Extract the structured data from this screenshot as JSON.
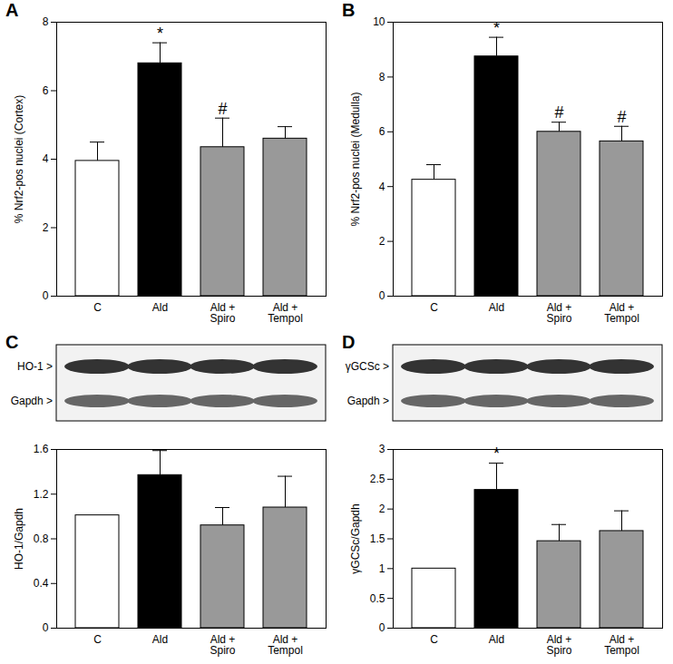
{
  "chart_data": [
    {
      "type": "bar",
      "title": "A",
      "y_label": "% Nrf2-pos nuclei (Cortex)",
      "categories": [
        "C",
        "Ald",
        "Ald +\nSpiro",
        "Ald +\nTempol"
      ],
      "values": [
        3.95,
        6.8,
        4.35,
        4.6
      ],
      "errors": [
        0.55,
        0.6,
        0.85,
        0.35
      ],
      "colors": [
        "#ffffff",
        "#000000",
        "#999999",
        "#999999"
      ],
      "ylim": [
        0,
        8
      ],
      "yticks": [
        0,
        2,
        4,
        6,
        8
      ],
      "annotations": [
        {
          "category": "Ald",
          "text": "*"
        },
        {
          "category": "Ald +\nSpiro",
          "text": "#"
        }
      ]
    },
    {
      "type": "bar",
      "title": "B",
      "y_label": "% Nrf2-pos nuclei (Medulla)",
      "categories": [
        "C",
        "Ald",
        "Ald +\nSpiro",
        "Ald +\nTempol"
      ],
      "values": [
        4.25,
        8.75,
        6.0,
        5.65
      ],
      "errors": [
        0.55,
        0.7,
        0.35,
        0.55
      ],
      "colors": [
        "#ffffff",
        "#000000",
        "#999999",
        "#999999"
      ],
      "ylim": [
        0,
        10
      ],
      "yticks": [
        0,
        2,
        4,
        6,
        8,
        10
      ],
      "annotations": [
        {
          "category": "Ald",
          "text": "*"
        },
        {
          "category": "Ald +\nSpiro",
          "text": "#"
        },
        {
          "category": "Ald +\nTempol",
          "text": "#"
        }
      ]
    },
    {
      "type": "bar",
      "title": "C",
      "y_label": "HO-1/Gapdh",
      "blot": {
        "labels": [
          "HO-1 >",
          "Gapdh >"
        ]
      },
      "categories": [
        "C",
        "Ald",
        "Ald +\nSpiro",
        "Ald +\nTempol"
      ],
      "values": [
        1.01,
        1.37,
        0.92,
        1.08
      ],
      "errors": [
        0,
        0.22,
        0.16,
        0.28
      ],
      "colors": [
        "#ffffff",
        "#000000",
        "#999999",
        "#999999"
      ],
      "ylim": [
        0,
        1.6
      ],
      "yticks": [
        0,
        0.4,
        0.8,
        1.2,
        1.6
      ]
    },
    {
      "type": "bar",
      "title": "D",
      "y_label": "γGCSc/Gapdh",
      "blot": {
        "labels": [
          "γGCSc >",
          "Gapdh >"
        ]
      },
      "categories": [
        "C",
        "Ald",
        "Ald +\nSpiro",
        "Ald +\nTempol"
      ],
      "values": [
        1.0,
        2.32,
        1.46,
        1.63
      ],
      "errors": [
        0,
        0.45,
        0.28,
        0.34
      ],
      "colors": [
        "#ffffff",
        "#000000",
        "#999999",
        "#999999"
      ],
      "ylim": [
        0,
        3
      ],
      "yticks": [
        0,
        0.5,
        1,
        1.5,
        2,
        2.5,
        3
      ],
      "annotations": [
        {
          "category": "Ald",
          "text": "*"
        }
      ]
    }
  ]
}
